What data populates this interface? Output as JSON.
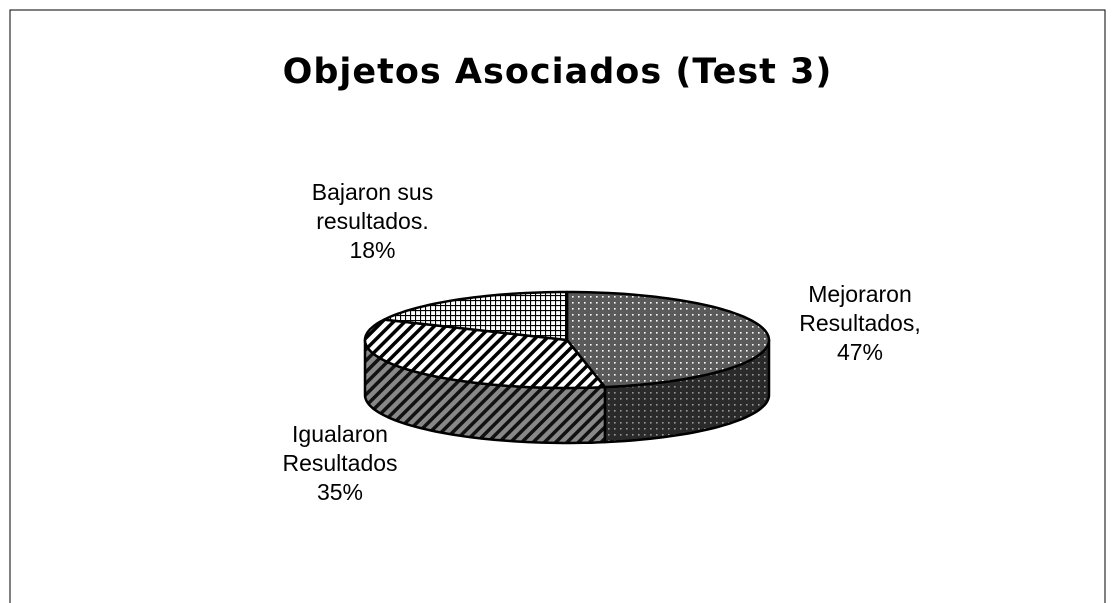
{
  "chart_data": {
    "type": "pie",
    "title": "Objetos Asociados (Test 3)",
    "categories": [
      "Mejoraron Resultados,",
      "Igualaron Resultados",
      "Bajaron sus resultados."
    ],
    "values": [
      47,
      35,
      18
    ],
    "value_labels": [
      "47%",
      "35%",
      "18%"
    ]
  }
}
